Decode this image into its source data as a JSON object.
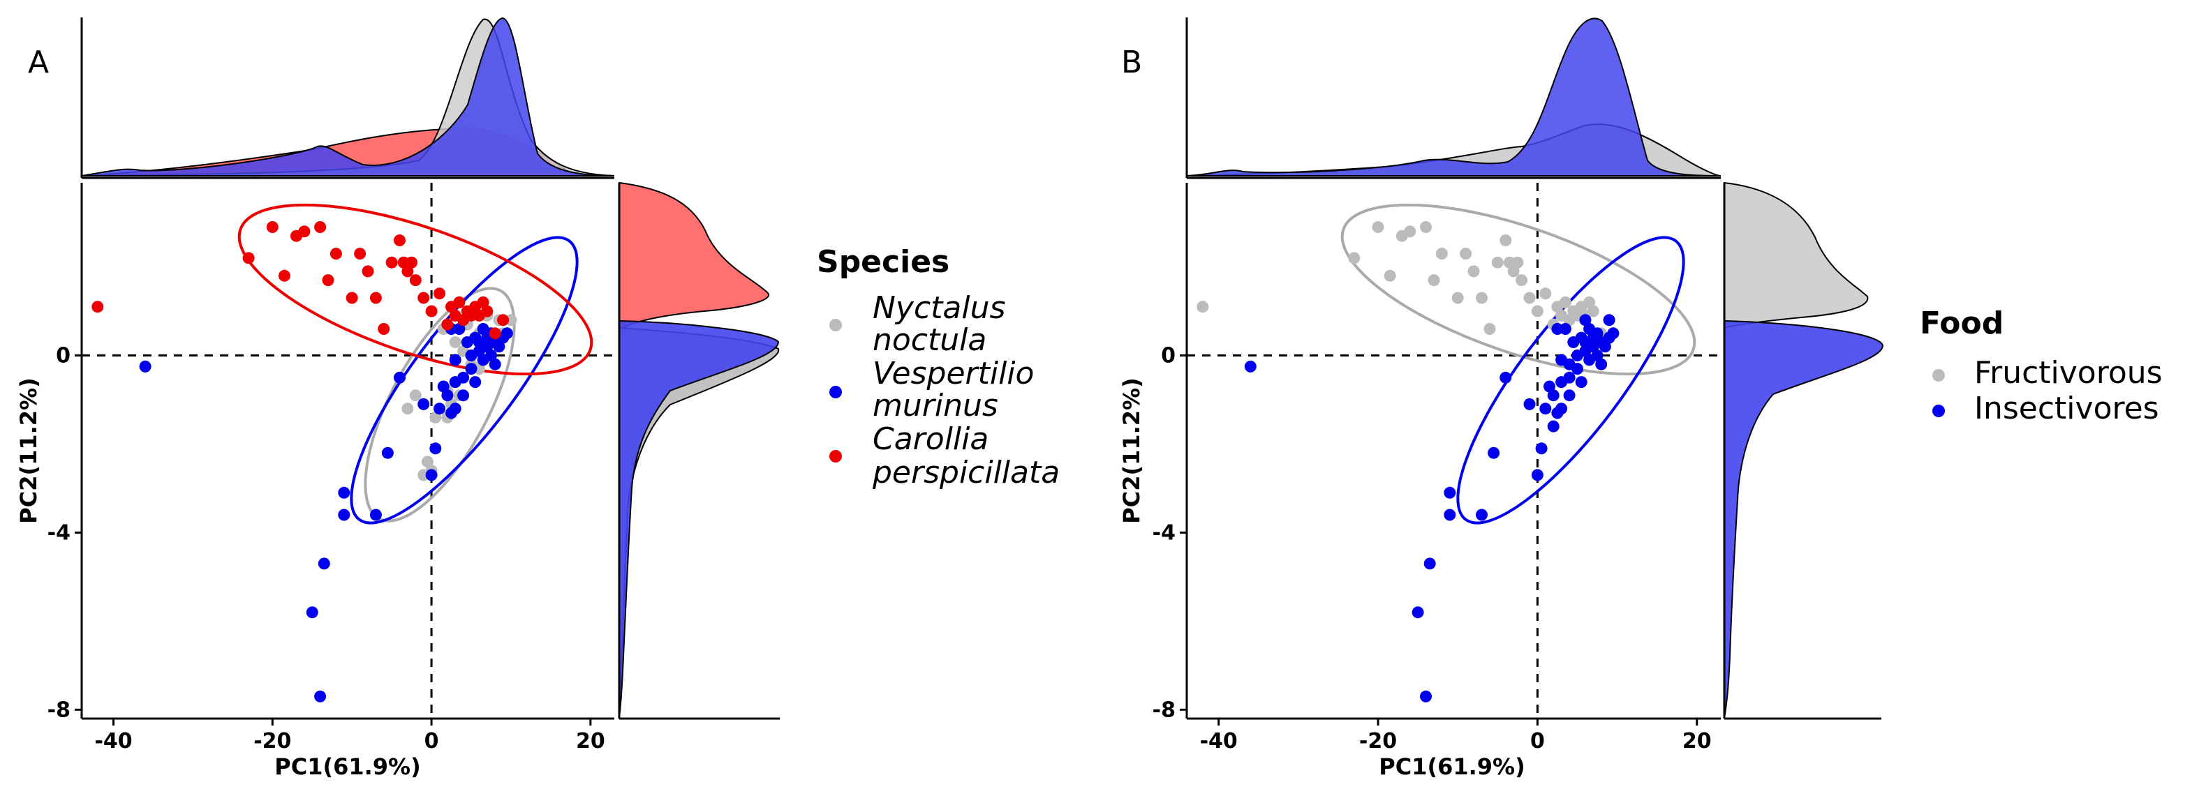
{
  "chart_data": [
    {
      "panel": "A",
      "type": "scatter",
      "xlabel": "PC1(61.9%)",
      "ylabel": "PC2(11.2%)",
      "xlim": [
        -44,
        23
      ],
      "ylim": [
        -8.2,
        3.9
      ],
      "xticks": [
        "-40",
        "-20",
        "0",
        "20"
      ],
      "yticks": [
        "-8",
        "-4",
        "0"
      ],
      "reference_lines": [
        "x = 0",
        "y = 0"
      ],
      "legend": {
        "title": "Species",
        "entries": [
          {
            "line1": "Nyctalus",
            "line2": "noctula",
            "color": "#bbbbbb"
          },
          {
            "line1": "Vespertilio",
            "line2": "murinus",
            "color": "#0000ee"
          },
          {
            "line1": "Carollia",
            "line2": "perspicillata",
            "color": "#ee0000"
          }
        ]
      },
      "series": [
        {
          "name": "Nyctalus noctula",
          "color": "#bbbbbb",
          "points": [
            [
              -36,
              -0.25
            ],
            [
              -11,
              -3.6
            ],
            [
              -4,
              -0.5
            ],
            [
              -3,
              -1.2
            ],
            [
              -2,
              -0.9
            ],
            [
              -1,
              -2.7
            ],
            [
              -0.5,
              -2.4
            ],
            [
              0,
              -2.6
            ],
            [
              0.5,
              -1.4
            ],
            [
              1,
              -1.2
            ],
            [
              1.5,
              0.6
            ],
            [
              2,
              -0.8
            ],
            [
              2.5,
              -1.1
            ],
            [
              3,
              -0.6
            ],
            [
              3,
              0.3
            ],
            [
              3.5,
              -0.9
            ],
            [
              4,
              0.1
            ],
            [
              4.5,
              0.7
            ],
            [
              5,
              -0.2
            ],
            [
              5.5,
              0.4
            ],
            [
              6,
              0.5
            ],
            [
              6.5,
              0.2
            ],
            [
              7,
              0.9
            ],
            [
              7.5,
              0.0
            ],
            [
              8,
              0.3
            ],
            [
              8.5,
              0.8
            ],
            [
              9,
              0.5
            ],
            [
              10,
              0.8
            ],
            [
              2,
              -1.4
            ],
            [
              6,
              -0.3
            ]
          ]
        },
        {
          "name": "Vespertilio murinus",
          "color": "#0000ee",
          "points": [
            [
              -36,
              -0.25
            ],
            [
              -15,
              -5.8
            ],
            [
              -14,
              -7.7
            ],
            [
              -13.5,
              -4.7
            ],
            [
              -11,
              -3.1
            ],
            [
              -11,
              -3.6
            ],
            [
              -7,
              -3.6
            ],
            [
              -5.5,
              -2.2
            ],
            [
              -4,
              -0.5
            ],
            [
              -1,
              -1.1
            ],
            [
              0,
              -2.7
            ],
            [
              0.5,
              -2.1
            ],
            [
              1,
              -1.2
            ],
            [
              1.5,
              -0.7
            ],
            [
              2,
              -0.9
            ],
            [
              2.5,
              -1.3
            ],
            [
              3,
              -0.6
            ],
            [
              3,
              -0.1
            ],
            [
              3.5,
              0.6
            ],
            [
              4,
              -0.5
            ],
            [
              4.5,
              0.3
            ],
            [
              5,
              0.0
            ],
            [
              5,
              -0.3
            ],
            [
              5.5,
              0.4
            ],
            [
              6,
              0.1
            ],
            [
              6,
              0.3
            ],
            [
              6.5,
              -0.1
            ],
            [
              6.5,
              0.6
            ],
            [
              7,
              0.2
            ],
            [
              7,
              0.4
            ],
            [
              7.5,
              0.0
            ],
            [
              7.5,
              0.5
            ],
            [
              8,
              0.3
            ],
            [
              8,
              -0.2
            ],
            [
              8.5,
              0.2
            ],
            [
              9,
              0.4
            ],
            [
              9.5,
              0.5
            ],
            [
              3,
              -1.2
            ],
            [
              4,
              -0.9
            ],
            [
              2.5,
              0.6
            ],
            [
              5.5,
              -0.6
            ]
          ]
        },
        {
          "name": "Carollia perspicillata",
          "color": "#ee0000",
          "points": [
            [
              -42,
              1.1
            ],
            [
              -23,
              2.2
            ],
            [
              -20,
              2.9
            ],
            [
              -18.5,
              1.8
            ],
            [
              -17,
              2.7
            ],
            [
              -16,
              2.8
            ],
            [
              -14,
              2.9
            ],
            [
              -13,
              1.7
            ],
            [
              -12,
              2.3
            ],
            [
              -10,
              1.3
            ],
            [
              -9,
              2.3
            ],
            [
              -8,
              1.9
            ],
            [
              -7,
              1.3
            ],
            [
              -6,
              0.6
            ],
            [
              -5,
              2.1
            ],
            [
              -4,
              2.6
            ],
            [
              -3.5,
              2.1
            ],
            [
              -3,
              1.9
            ],
            [
              -2.5,
              2.1
            ],
            [
              -2,
              1.7
            ],
            [
              -1,
              1.3
            ],
            [
              0,
              1.0
            ],
            [
              1,
              1.4
            ],
            [
              2,
              0.7
            ],
            [
              2.5,
              1.1
            ],
            [
              3,
              0.9
            ],
            [
              3.5,
              1.2
            ],
            [
              4,
              0.8
            ],
            [
              4.5,
              1.0
            ],
            [
              5,
              0.9
            ],
            [
              5.5,
              1.1
            ],
            [
              6,
              0.9
            ],
            [
              6.5,
              1.2
            ],
            [
              7,
              1.0
            ],
            [
              8,
              0.5
            ],
            [
              9,
              0.8
            ]
          ]
        }
      ]
    },
    {
      "panel": "B",
      "type": "scatter",
      "xlabel": "PC1(61.9%)",
      "ylabel": "PC2(11.2%)",
      "xlim": [
        -44,
        23
      ],
      "ylim": [
        -8.2,
        3.9
      ],
      "xticks": [
        "-40",
        "-20",
        "0",
        "20"
      ],
      "yticks": [
        "-8",
        "-4",
        "0"
      ],
      "reference_lines": [
        "x = 0",
        "y = 0"
      ],
      "legend": {
        "title": "Food",
        "entries": [
          {
            "line1": "Fructivorous",
            "line2": "",
            "color": "#bbbbbb"
          },
          {
            "line1": "Insectivores",
            "line2": "",
            "color": "#0000ee"
          }
        ]
      },
      "series": [
        {
          "name": "Fructivorous",
          "color": "#bbbbbb",
          "points": [
            [
              -42,
              1.1
            ],
            [
              -23,
              2.2
            ],
            [
              -20,
              2.9
            ],
            [
              -18.5,
              1.8
            ],
            [
              -17,
              2.7
            ],
            [
              -16,
              2.8
            ],
            [
              -14,
              2.9
            ],
            [
              -13,
              1.7
            ],
            [
              -12,
              2.3
            ],
            [
              -10,
              1.3
            ],
            [
              -9,
              2.3
            ],
            [
              -8,
              1.9
            ],
            [
              -7,
              1.3
            ],
            [
              -6,
              0.6
            ],
            [
              -5,
              2.1
            ],
            [
              -4,
              2.6
            ],
            [
              -3.5,
              2.1
            ],
            [
              -3,
              1.9
            ],
            [
              -2.5,
              2.1
            ],
            [
              -2,
              1.7
            ],
            [
              -1,
              1.3
            ],
            [
              0,
              1.0
            ],
            [
              1,
              1.4
            ],
            [
              2,
              0.7
            ],
            [
              2.5,
              1.1
            ],
            [
              3,
              0.9
            ],
            [
              3.5,
              1.2
            ],
            [
              4,
              0.8
            ],
            [
              4.5,
              1.0
            ],
            [
              5,
              0.9
            ],
            [
              5.5,
              1.1
            ],
            [
              6,
              0.9
            ],
            [
              6.5,
              1.2
            ],
            [
              7,
              1.0
            ],
            [
              8,
              0.5
            ],
            [
              9,
              0.8
            ]
          ]
        },
        {
          "name": "Insectivores",
          "color": "#0000ee",
          "points": [
            [
              -36,
              -0.25
            ],
            [
              -15,
              -5.8
            ],
            [
              -14,
              -7.7
            ],
            [
              -13.5,
              -4.7
            ],
            [
              -11,
              -3.1
            ],
            [
              -11,
              -3.6
            ],
            [
              -7,
              -3.6
            ],
            [
              -5.5,
              -2.2
            ],
            [
              -4,
              -0.5
            ],
            [
              -1,
              -1.1
            ],
            [
              0,
              -2.7
            ],
            [
              0.5,
              -2.1
            ],
            [
              1,
              -1.2
            ],
            [
              1.5,
              -0.7
            ],
            [
              2,
              -0.9
            ],
            [
              2.5,
              -1.3
            ],
            [
              3,
              -0.6
            ],
            [
              3,
              -0.1
            ],
            [
              3.5,
              0.6
            ],
            [
              4,
              -0.5
            ],
            [
              4.5,
              0.3
            ],
            [
              5,
              0.0
            ],
            [
              5,
              -0.3
            ],
            [
              5.5,
              0.4
            ],
            [
              6,
              0.1
            ],
            [
              6,
              0.3
            ],
            [
              6.5,
              -0.1
            ],
            [
              6.5,
              0.6
            ],
            [
              7,
              0.2
            ],
            [
              7,
              0.4
            ],
            [
              7.5,
              0.0
            ],
            [
              7.5,
              0.5
            ],
            [
              8,
              0.3
            ],
            [
              8,
              -0.2
            ],
            [
              8.5,
              0.2
            ],
            [
              9,
              0.4
            ],
            [
              9.5,
              0.5
            ],
            [
              3,
              -1.2
            ],
            [
              4,
              -0.9
            ],
            [
              2.5,
              0.6
            ],
            [
              5.5,
              -0.6
            ],
            [
              4,
              -0.2
            ],
            [
              6,
              0.8
            ],
            [
              2,
              -1.6
            ],
            [
              9,
              0.8
            ]
          ]
        }
      ]
    }
  ]
}
